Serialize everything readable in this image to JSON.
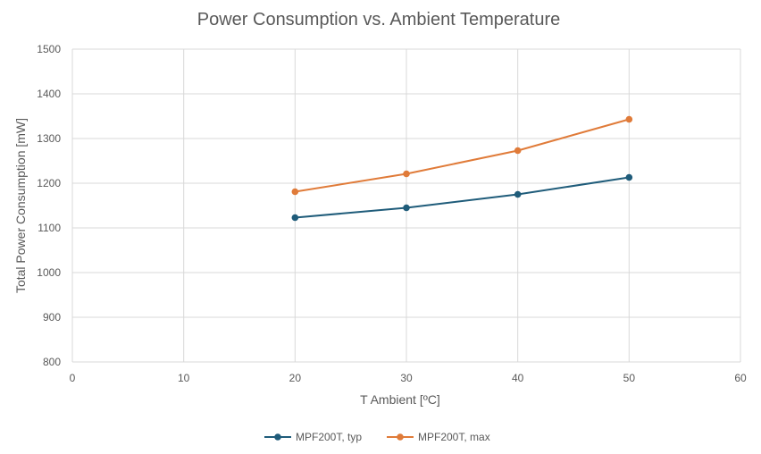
{
  "chart_data": {
    "type": "line",
    "title": "Power Consumption vs. Ambient Temperature",
    "xlabel": "T Ambient [ºC]",
    "ylabel": "Total Power Consumption [mW]",
    "xlim": [
      0,
      60
    ],
    "ylim": [
      800,
      1500
    ],
    "x_ticks": [
      0,
      10,
      20,
      30,
      40,
      50,
      60
    ],
    "y_ticks": [
      800,
      900,
      1000,
      1100,
      1200,
      1300,
      1400,
      1500
    ],
    "grid": true,
    "legend_position": "bottom-center",
    "series": [
      {
        "name": "MPF200T, typ",
        "color": "#1F5C7A",
        "x": [
          20,
          30,
          40,
          50
        ],
        "values": [
          1123,
          1145,
          1175,
          1213
        ]
      },
      {
        "name": "MPF200T, max",
        "color": "#E07B39",
        "x": [
          20,
          30,
          40,
          50
        ],
        "values": [
          1181,
          1221,
          1273,
          1343
        ]
      }
    ]
  }
}
